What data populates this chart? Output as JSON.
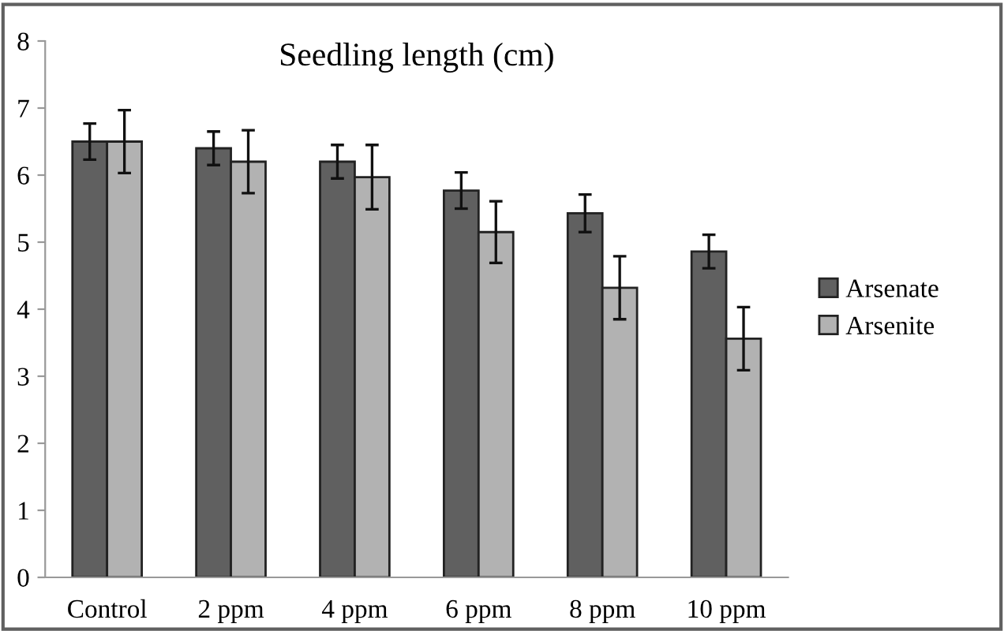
{
  "chart_data": {
    "type": "bar",
    "title": "Seedling length (cm)",
    "categories": [
      "Control",
      "2 ppm",
      "4 ppm",
      "6 ppm",
      "8 ppm",
      "10 ppm"
    ],
    "series": [
      {
        "name": "Arsenate",
        "color": "#606060",
        "values": [
          6.5,
          6.4,
          6.2,
          5.77,
          5.43,
          4.86
        ],
        "errors": [
          0.27,
          0.25,
          0.25,
          0.27,
          0.28,
          0.25
        ]
      },
      {
        "name": "Arsenite",
        "color": "#b2b2b2",
        "values": [
          6.5,
          6.2,
          5.97,
          5.15,
          4.32,
          3.56
        ],
        "errors": [
          0.47,
          0.47,
          0.48,
          0.46,
          0.47,
          0.47
        ]
      }
    ],
    "ylim": [
      0,
      8
    ],
    "yticks": [
      0,
      1,
      2,
      3,
      4,
      5,
      6,
      7,
      8
    ],
    "grid": false,
    "legend": "right"
  }
}
